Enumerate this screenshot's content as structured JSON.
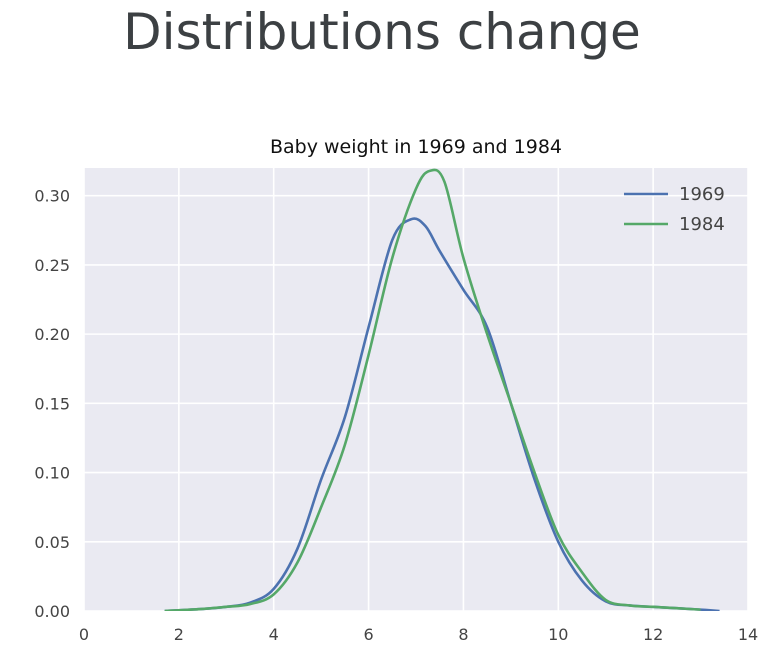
{
  "slide": {
    "title": "Distributions change"
  },
  "chart_data": {
    "type": "line",
    "title": "Baby weight in 1969 and 1984",
    "xlabel": "",
    "ylabel": "",
    "xlim": [
      0,
      14
    ],
    "ylim": [
      0,
      0.32
    ],
    "xticks": [
      "0",
      "2",
      "4",
      "6",
      "8",
      "10",
      "12",
      "14"
    ],
    "yticks": [
      "0.00",
      "0.05",
      "0.10",
      "0.15",
      "0.20",
      "0.25",
      "0.30"
    ],
    "grid": true,
    "legend_position": "top-right",
    "background": "#eaeaf2",
    "series": [
      {
        "name": "1969",
        "color": "#4c72b0",
        "x": [
          1.7,
          2.5,
          3.0,
          3.5,
          4.0,
          4.5,
          5.0,
          5.5,
          6.0,
          6.5,
          6.9,
          7.2,
          7.5,
          8.0,
          8.5,
          9.0,
          9.5,
          10.0,
          10.5,
          11.0,
          11.5,
          12.0,
          12.5,
          13.0,
          13.4
        ],
        "y": [
          0.0,
          0.0015,
          0.003,
          0.006,
          0.016,
          0.045,
          0.095,
          0.14,
          0.205,
          0.268,
          0.283,
          0.278,
          0.26,
          0.232,
          0.205,
          0.15,
          0.095,
          0.05,
          0.022,
          0.007,
          0.004,
          0.003,
          0.002,
          0.001,
          0.0
        ]
      },
      {
        "name": "1984",
        "color": "#55a868",
        "x": [
          1.7,
          2.5,
          3.0,
          3.5,
          4.0,
          4.5,
          5.0,
          5.5,
          6.0,
          6.5,
          7.0,
          7.3,
          7.6,
          8.0,
          8.5,
          9.0,
          9.5,
          10.0,
          10.5,
          11.0,
          11.5,
          12.0,
          12.5,
          13.0
        ],
        "y": [
          0.0,
          0.0015,
          0.003,
          0.005,
          0.012,
          0.035,
          0.075,
          0.12,
          0.185,
          0.255,
          0.305,
          0.318,
          0.31,
          0.255,
          0.2,
          0.15,
          0.1,
          0.055,
          0.028,
          0.008,
          0.004,
          0.003,
          0.002,
          0.001
        ]
      }
    ]
  }
}
